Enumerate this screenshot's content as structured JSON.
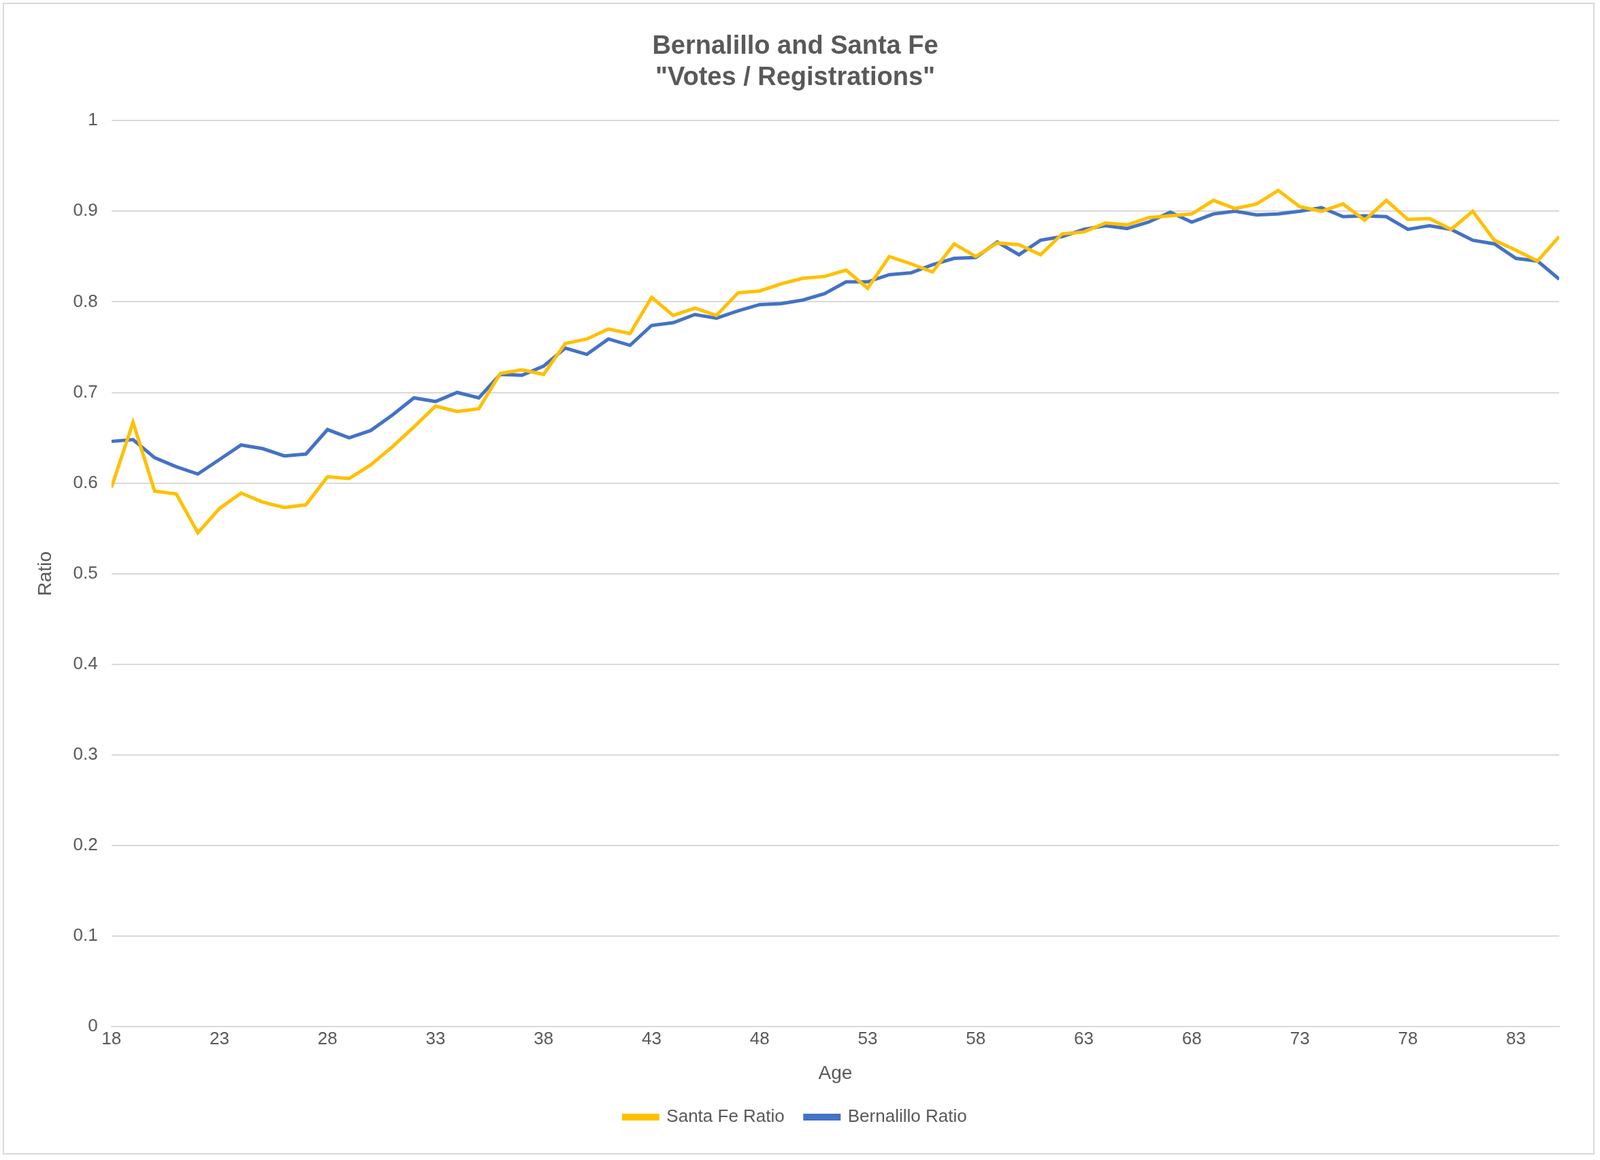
{
  "chart_data": {
    "type": "line",
    "title": [
      "Bernalillo and Santa Fe",
      "\"Votes / Registrations\""
    ],
    "x_label": "Age",
    "y_label": "Ratio",
    "x": [
      18,
      19,
      20,
      21,
      22,
      23,
      24,
      25,
      26,
      27,
      28,
      29,
      30,
      31,
      32,
      33,
      34,
      35,
      36,
      37,
      38,
      39,
      40,
      41,
      42,
      43,
      44,
      45,
      46,
      47,
      48,
      49,
      50,
      51,
      52,
      53,
      54,
      55,
      56,
      57,
      58,
      59,
      60,
      61,
      62,
      63,
      64,
      65,
      66,
      67,
      68,
      69,
      70,
      71,
      72,
      73,
      74,
      75,
      76,
      77,
      78,
      79,
      80,
      81,
      82,
      83,
      84,
      85
    ],
    "series": [
      {
        "name": "Santa Fe Ratio",
        "color": "#ffc000",
        "values": [
          0.595,
          0.667,
          0.591,
          0.588,
          0.545,
          0.572,
          0.589,
          0.579,
          0.573,
          0.576,
          0.607,
          0.605,
          0.62,
          0.64,
          0.662,
          0.685,
          0.679,
          0.682,
          0.721,
          0.725,
          0.72,
          0.754,
          0.759,
          0.77,
          0.765,
          0.805,
          0.785,
          0.793,
          0.785,
          0.81,
          0.812,
          0.82,
          0.826,
          0.828,
          0.835,
          0.815,
          0.85,
          0.842,
          0.833,
          0.864,
          0.85,
          0.865,
          0.863,
          0.852,
          0.875,
          0.877,
          0.887,
          0.885,
          0.893,
          0.895,
          0.897,
          0.912,
          0.903,
          0.908,
          0.923,
          0.905,
          0.9,
          0.908,
          0.89,
          0.912,
          0.891,
          0.892,
          0.88,
          0.9,
          0.868,
          0.857,
          0.845,
          0.872
        ]
      },
      {
        "name": "Bernalillo Ratio",
        "color": "#4472c4",
        "values": [
          0.646,
          0.648,
          0.628,
          0.618,
          0.61,
          0.626,
          0.642,
          0.638,
          0.63,
          0.632,
          0.659,
          0.65,
          0.658,
          0.675,
          0.694,
          0.69,
          0.7,
          0.694,
          0.72,
          0.719,
          0.729,
          0.749,
          0.742,
          0.759,
          0.752,
          0.774,
          0.777,
          0.786,
          0.782,
          0.79,
          0.797,
          0.798,
          0.802,
          0.809,
          0.822,
          0.822,
          0.83,
          0.832,
          0.841,
          0.848,
          0.849,
          0.866,
          0.852,
          0.868,
          0.872,
          0.88,
          0.884,
          0.881,
          0.888,
          0.899,
          0.888,
          0.897,
          0.9,
          0.896,
          0.897,
          0.9,
          0.904,
          0.894,
          0.895,
          0.894,
          0.88,
          0.884,
          0.88,
          0.868,
          0.864,
          0.848,
          0.845,
          0.825
        ]
      }
    ],
    "xlim": [
      18,
      85
    ],
    "xticks": [
      18,
      23,
      28,
      33,
      38,
      43,
      48,
      53,
      58,
      63,
      68,
      73,
      78,
      83
    ],
    "ylim": [
      0,
      1
    ],
    "yticks": [
      0,
      0.1,
      0.2,
      0.3,
      0.4,
      0.5,
      0.6,
      0.7,
      0.8,
      0.9,
      1
    ],
    "grid": "y",
    "legend": "bottom"
  }
}
